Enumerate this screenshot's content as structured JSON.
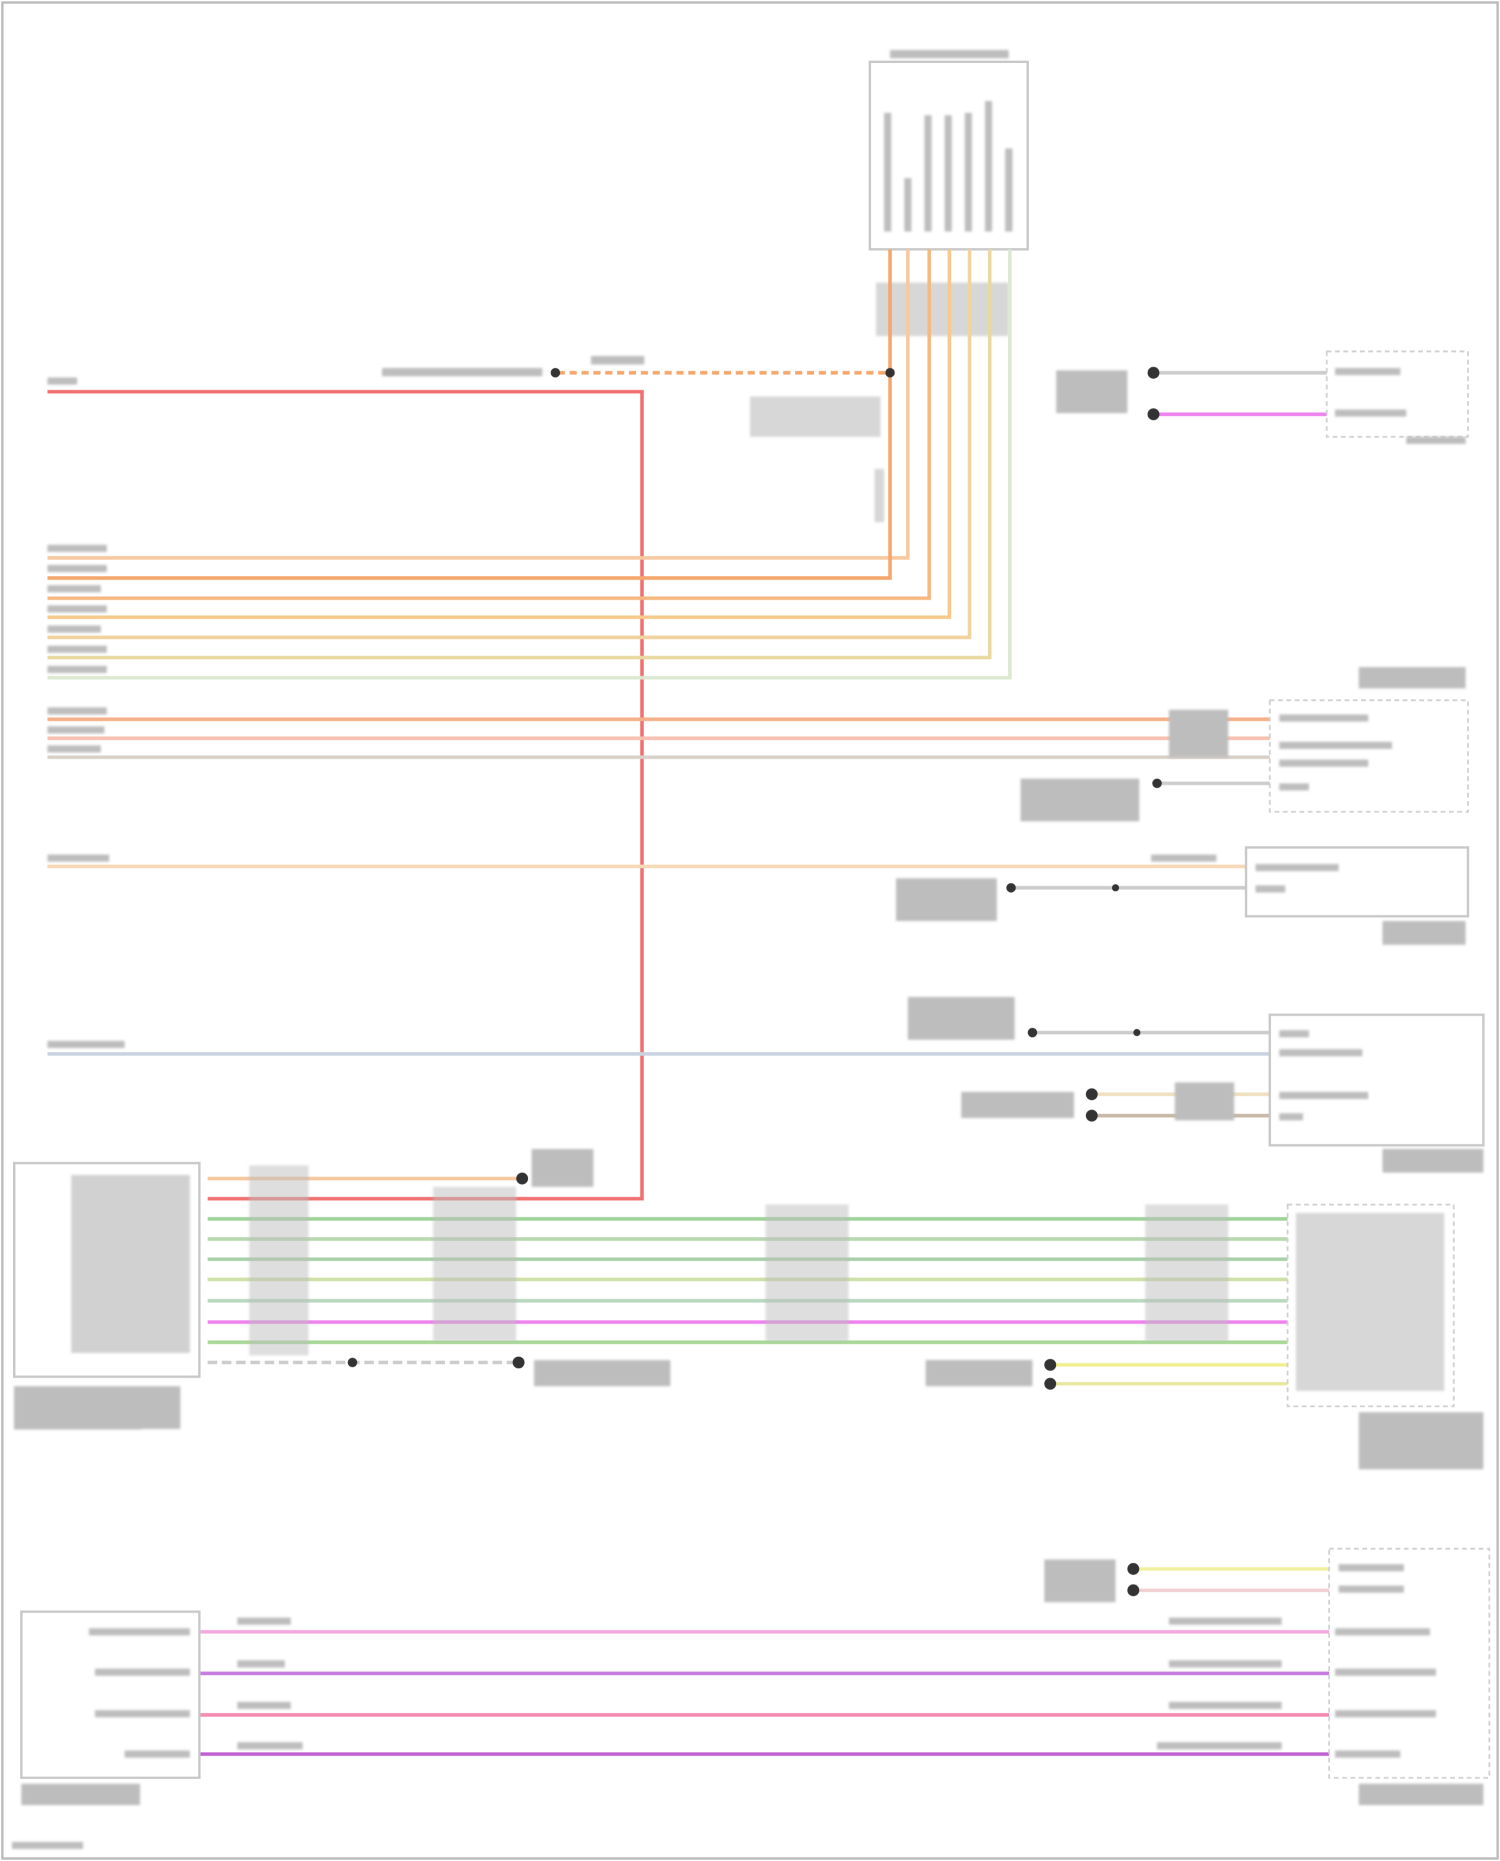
{
  "wire_colors": {
    "red": "#f07070",
    "orange": "#f5a66c",
    "light_orange": "#f7c9a0",
    "tan": "#f0d3a0",
    "green": "#9fd39a",
    "light_green": "#cfe6c4",
    "grey": "#c8c8c8",
    "magenta": "#ee82ee",
    "violet": "#c77ce0",
    "pink": "#f49ac1",
    "yellow": "#f0f090",
    "blue_grey": "#c9d3e0"
  },
  "note": ""
}
